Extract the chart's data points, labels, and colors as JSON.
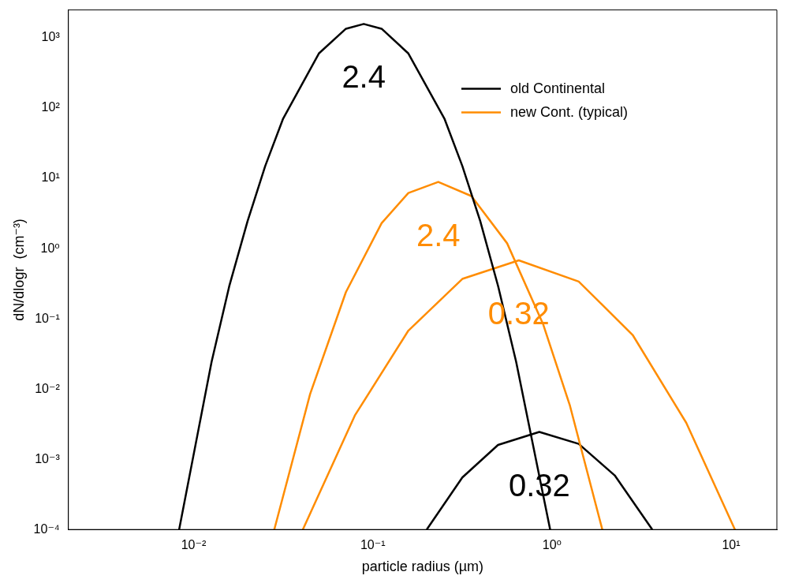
{
  "chart_data": {
    "type": "line",
    "xlabel": "particle radius (µm)",
    "ylabel": "dN/dlogr  (cm⁻³)",
    "log": "xy",
    "grid": false,
    "legend": "top right",
    "marker": "none",
    "line_style": "solid",
    "xlim": [
      0.002,
      18
    ],
    "ylim": [
      0.0001,
      2500
    ],
    "xticks": [
      {
        "value": 0.01,
        "label": "10⁻²"
      },
      {
        "value": 0.1,
        "label": "10⁻¹"
      },
      {
        "value": 1,
        "label": "10⁰"
      },
      {
        "value": 10,
        "label": "10¹"
      }
    ],
    "yticks": [
      {
        "value": 0.0001,
        "label": "10⁻⁴"
      },
      {
        "value": 0.001,
        "label": "10⁻³"
      },
      {
        "value": 0.01,
        "label": "10⁻²"
      },
      {
        "value": 0.1,
        "label": "10⁻¹"
      },
      {
        "value": 1,
        "label": "10⁰"
      },
      {
        "value": 10,
        "label": "10¹"
      },
      {
        "value": 100,
        "label": "10²"
      },
      {
        "value": 1000,
        "label": "10³"
      }
    ],
    "series": [
      {
        "name": "old Continental",
        "color": "#000000",
        "x": [
          0.0083,
          0.0126,
          0.0158,
          0.02,
          0.0251,
          0.0316,
          0.05,
          0.0708,
          0.089,
          0.112,
          0.158,
          0.251,
          0.316,
          0.398,
          0.501,
          0.631,
          0.977
        ],
        "values": [
          0.0001,
          0.0245,
          0.29,
          2.45,
          15,
          71,
          600,
          1350,
          1580,
          1350,
          600,
          71,
          15,
          2.45,
          0.29,
          0.0245,
          0.0001
        ]
      },
      {
        "name": "new Cont. (typical)",
        "color": "#ff8c00",
        "x": [
          0.0282,
          0.0447,
          0.0708,
          0.112,
          0.158,
          0.232,
          0.355,
          0.562,
          0.891,
          1.26,
          1.91
        ],
        "values": [
          0.0001,
          0.0085,
          0.24,
          2.3,
          6.2,
          8.9,
          5.6,
          1.19,
          0.085,
          0.0058,
          0.0001
        ]
      },
      {
        "color": "#ff8c00",
        "x": [
          0.0407,
          0.0794,
          0.158,
          0.316,
          0.653,
          1.41,
          2.82,
          5.62,
          10.5
        ],
        "values": [
          0.0001,
          0.0042,
          0.068,
          0.37,
          0.68,
          0.34,
          0.059,
          0.0033,
          0.0001
        ]
      },
      {
        "color": "#000000",
        "x": [
          0.2,
          0.316,
          0.5,
          0.85,
          1.41,
          2.24,
          3.63
        ],
        "values": [
          0.0001,
          0.00055,
          0.0016,
          0.00245,
          0.00166,
          0.00059,
          0.0001
        ]
      }
    ],
    "annotations": [
      "2.4",
      "2.4",
      "0.32",
      "0.32"
    ]
  }
}
